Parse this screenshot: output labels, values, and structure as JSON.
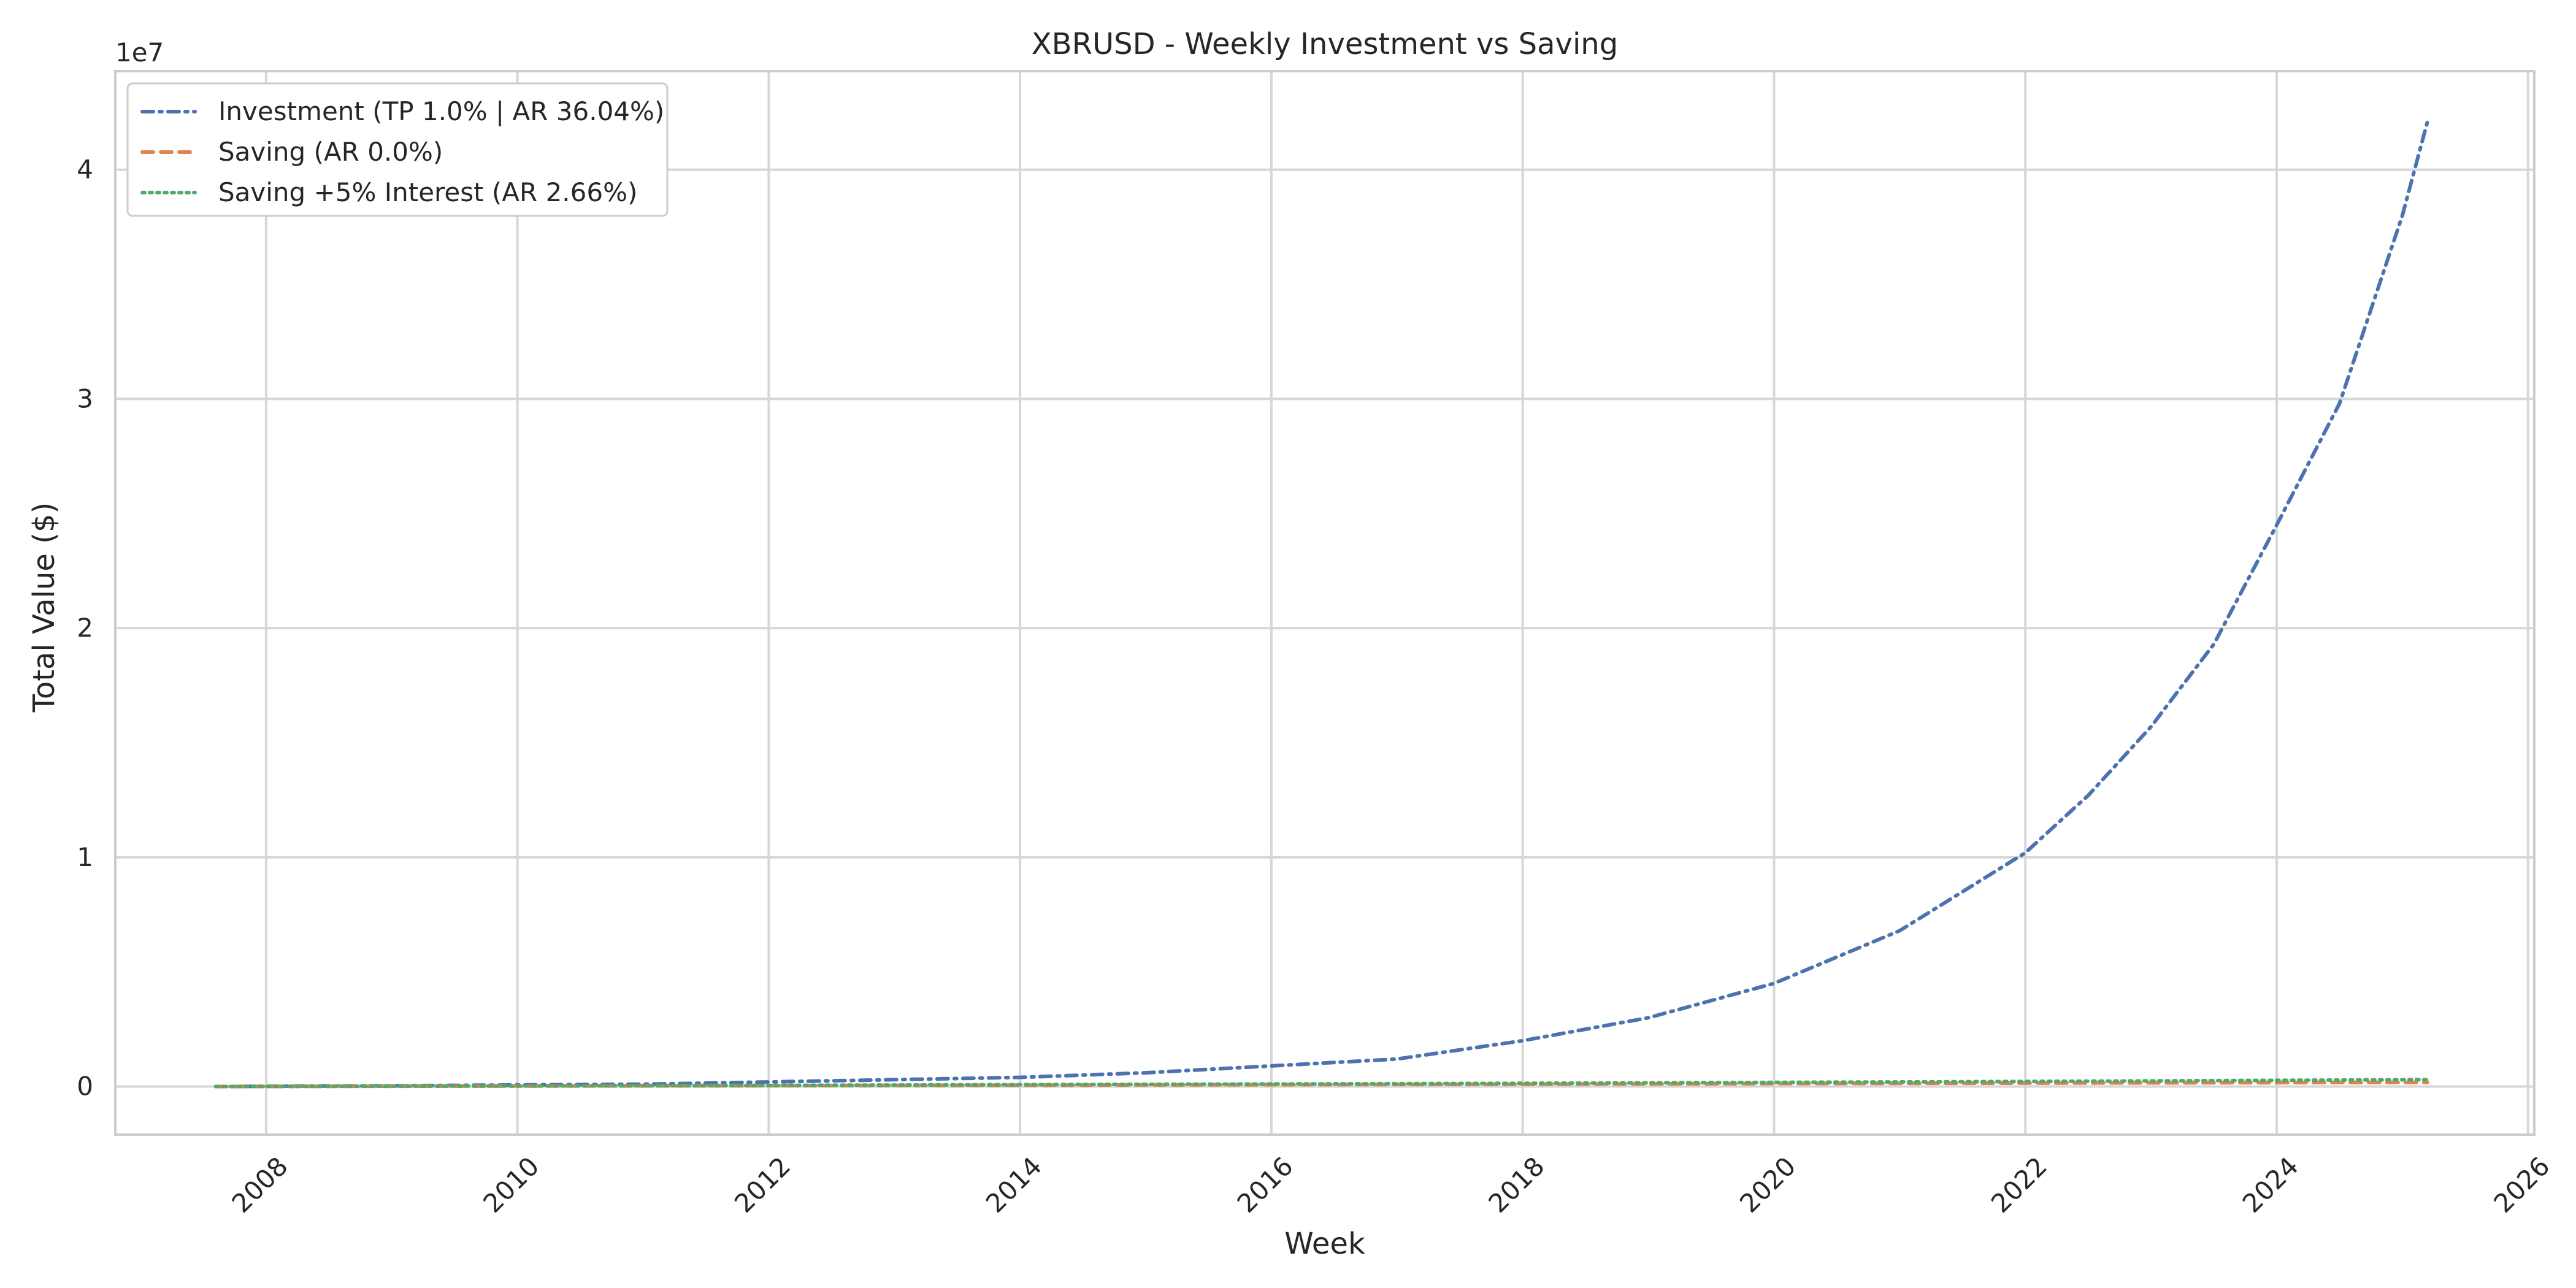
{
  "chart_data": {
    "type": "line",
    "title": "XBRUSD - Weekly Investment vs Saving",
    "xlabel": "Week",
    "ylabel": "Total Value ($)",
    "y_offset_label": "1e7",
    "xlim": [
      2006.8,
      2026.05
    ],
    "ylim": [
      -2100000,
      44300000
    ],
    "grid": true,
    "legend_position": "upper-left",
    "x_ticks": [
      2008,
      2010,
      2012,
      2014,
      2016,
      2018,
      2020,
      2022,
      2024,
      2026
    ],
    "x_tick_labels": [
      "2008",
      "2010",
      "2012",
      "2014",
      "2016",
      "2018",
      "2020",
      "2022",
      "2024",
      "2026"
    ],
    "y_ticks": [
      0,
      10000000,
      20000000,
      30000000,
      40000000
    ],
    "y_tick_labels": [
      "0",
      "1",
      "2",
      "3",
      "4"
    ],
    "series": [
      {
        "name": "Investment (TP 1.0% | AR 36.04%)",
        "color": "#4c72b0",
        "linestyle": "dashdot",
        "x": [
          2007.6,
          2008.0,
          2009.0,
          2010.0,
          2011.0,
          2012.0,
          2013.0,
          2014.0,
          2015.0,
          2016.0,
          2017.0,
          2018.0,
          2019.0,
          2020.0,
          2021.0,
          2022.0,
          2022.5,
          2023.0,
          2023.5,
          2024.0,
          2024.5,
          2025.0,
          2025.2
        ],
        "y": [
          0,
          10000,
          30000,
          70000,
          100000,
          200000,
          300000,
          400000,
          600000,
          900000,
          1200000,
          2000000,
          3000000,
          4500000,
          6800000,
          10200000,
          12700000,
          15700000,
          19300000,
          24500000,
          29800000,
          38000000,
          42100000
        ]
      },
      {
        "name": "Saving (AR 0.0%)",
        "color": "#dd8452",
        "linestyle": "dashed",
        "x": [
          2007.6,
          2010.0,
          2012.0,
          2014.0,
          2016.0,
          2018.0,
          2020.0,
          2022.0,
          2024.0,
          2025.2
        ],
        "y": [
          0,
          20000,
          40000,
          60000,
          80000,
          100000,
          130000,
          150000,
          170000,
          180000
        ]
      },
      {
        "name": "Saving +5% Interest (AR 2.66%)",
        "color": "#55a868",
        "linestyle": "dotted",
        "x": [
          2007.6,
          2010.0,
          2012.0,
          2014.0,
          2016.0,
          2018.0,
          2020.0,
          2022.0,
          2024.0,
          2025.2
        ],
        "y": [
          0,
          25000,
          50000,
          80000,
          110000,
          140000,
          180000,
          220000,
          270000,
          300000
        ]
      }
    ]
  }
}
